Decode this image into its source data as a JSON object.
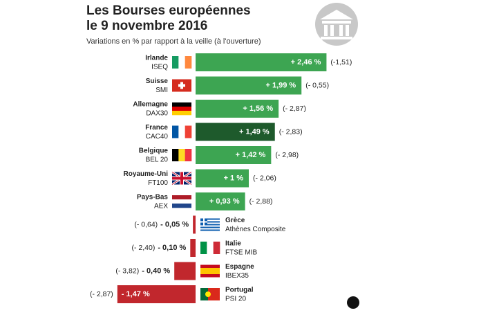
{
  "chart_data": {
    "type": "bar",
    "orientation": "horizontal",
    "title": [
      "Les Bourses européennes",
      "le 9 novembre 2016"
    ],
    "subtitle": "Variations en % par rapport à la veille (à l'ouverture)",
    "categories": [
      "Irlande",
      "Suisse",
      "Allemagne",
      "France",
      "Belgique",
      "Royaume-Uni",
      "Pays-Bas",
      "Grèce",
      "Italie",
      "Espagne",
      "Portugal"
    ],
    "indices": [
      "ISEQ",
      "SMI",
      "DAX30",
      "CAC40",
      "BEL 20",
      "FT100",
      "AEX",
      "Athènes Composite",
      "FTSE MIB",
      "IBEX35",
      "PSI 20"
    ],
    "values": [
      2.46,
      1.99,
      1.56,
      1.49,
      1.42,
      1,
      0.93,
      -0.05,
      -0.1,
      -0.4,
      -1.47
    ],
    "value_labels": [
      "+ 2,46 %",
      "+ 1,99 %",
      "+ 1,56 %",
      "+ 1,49 %",
      "+ 1,42 %",
      "+ 1 %",
      "+ 0,93 %",
      "- 0,05 %",
      "- 0,10 %",
      "- 0,40 %",
      "- 1,47 %"
    ],
    "previous_day": [
      "(-1,51)",
      "(- 0,55)",
      "(- 2,87)",
      "(- 2,83)",
      "(- 2,98)",
      "(- 2,06)",
      "(- 2,88)",
      "(- 0,64)",
      "(- 2,40)",
      "(- 3,82)",
      "(- 2,87)"
    ],
    "colors": [
      "#3da552",
      "#3da552",
      "#3da552",
      "#1e5a2c",
      "#3da552",
      "#3da552",
      "#3da552",
      "#c1272d",
      "#c1272d",
      "#c1272d",
      "#c1272d"
    ],
    "xlim": [
      -1.5,
      2.5
    ]
  }
}
